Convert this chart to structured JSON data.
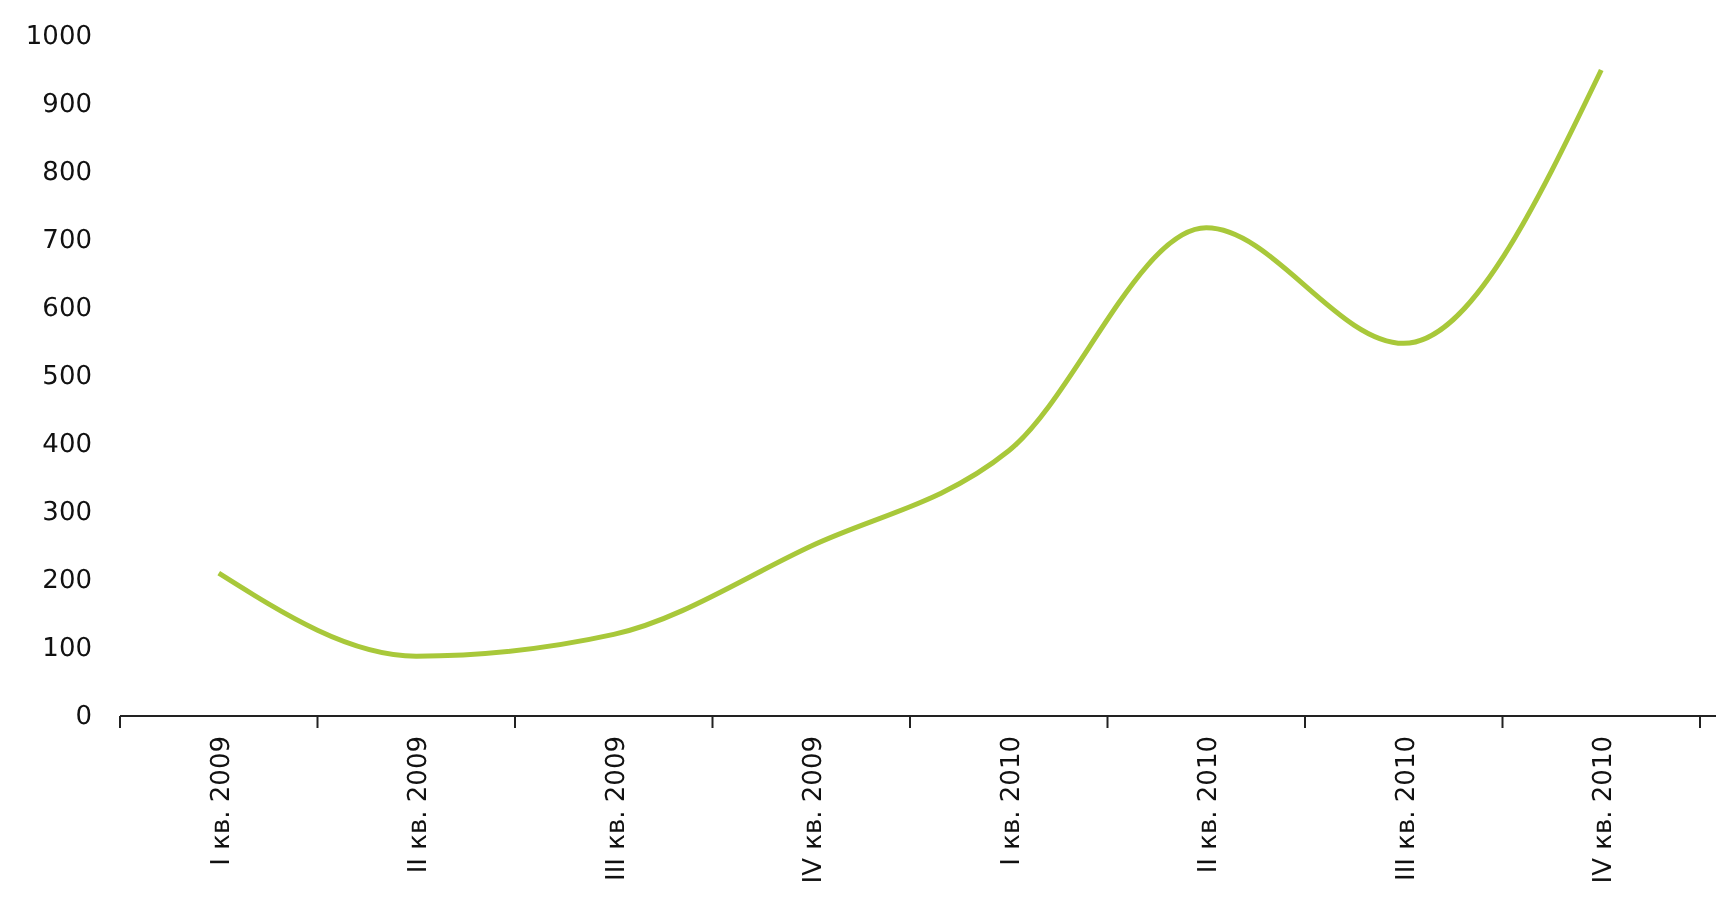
{
  "chart_data": {
    "type": "line",
    "categories": [
      "I кв. 2009",
      "II кв. 2009",
      "III кв. 2009",
      "IV кв. 2009",
      "I кв. 2010",
      "II кв. 2010",
      "III кв. 2010",
      "IV кв. 2010"
    ],
    "series": [
      {
        "color": "#a8c83a",
        "values": [
          210,
          88,
          120,
          250,
          390,
          718,
          548,
          950
        ]
      }
    ],
    "ylim": [
      0,
      1000
    ],
    "yticks": [
      0,
      100,
      200,
      300,
      400,
      500,
      600,
      700,
      800,
      900,
      1000
    ],
    "marker": "none",
    "line_style": "solid"
  }
}
